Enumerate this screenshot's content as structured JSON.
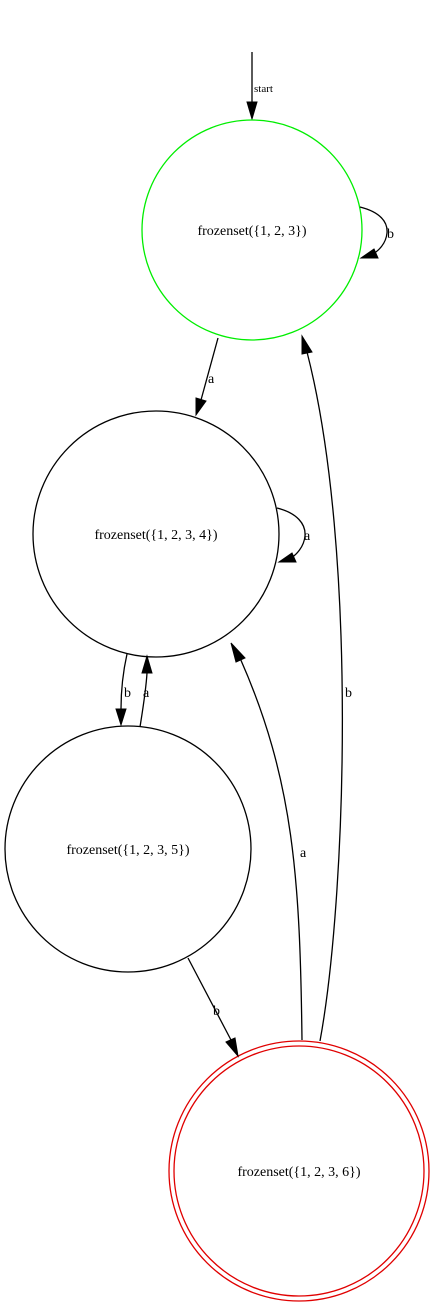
{
  "diagram": {
    "start_label": "start",
    "states": [
      {
        "id": "s123",
        "label": "frozenset({1, 2, 3})",
        "role": "initial",
        "outline_color": "#00ee00"
      },
      {
        "id": "s1234",
        "label": "frozenset({1, 2, 3, 4})",
        "role": "normal",
        "outline_color": "#000000"
      },
      {
        "id": "s1235",
        "label": "frozenset({1, 2, 3, 5})",
        "role": "normal",
        "outline_color": "#000000"
      },
      {
        "id": "s1236",
        "label": "frozenset({1, 2, 3, 6})",
        "role": "accepting",
        "outline_color": "#e00000"
      }
    ],
    "transitions": [
      {
        "from": "s123",
        "to": "s123",
        "symbol": "b"
      },
      {
        "from": "s123",
        "to": "s1234",
        "symbol": "a"
      },
      {
        "from": "s1234",
        "to": "s1234",
        "symbol": "a"
      },
      {
        "from": "s1234",
        "to": "s1235",
        "symbol": "b"
      },
      {
        "from": "s1235",
        "to": "s1234",
        "symbol": "a"
      },
      {
        "from": "s1235",
        "to": "s1236",
        "symbol": "b"
      },
      {
        "from": "s1236",
        "to": "s1234",
        "symbol": "a"
      },
      {
        "from": "s1236",
        "to": "s123",
        "symbol": "b"
      }
    ]
  }
}
